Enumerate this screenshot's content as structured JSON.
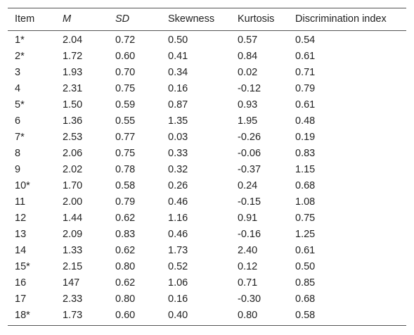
{
  "table": {
    "headers": [
      "Item",
      "M",
      "SD",
      "Skewness",
      "Kurtosis",
      "Discrimination index"
    ],
    "rows": [
      [
        "1*",
        "2.04",
        "0.72",
        "0.50",
        "0.57",
        "0.54"
      ],
      [
        "2*",
        "1.72",
        "0.60",
        "0.41",
        "0.84",
        "0.61"
      ],
      [
        "3",
        "1.93",
        "0.70",
        "0.34",
        "0.02",
        "0.71"
      ],
      [
        "4",
        "2.31",
        "0.75",
        "0.16",
        "-0.12",
        "0.79"
      ],
      [
        "5*",
        "1.50",
        "0.59",
        "0.87",
        "0.93",
        "0.61"
      ],
      [
        "6",
        "1.36",
        "0.55",
        "1.35",
        "1.95",
        "0.48"
      ],
      [
        "7*",
        "2.53",
        "0.77",
        "0.03",
        "-0.26",
        "0.19"
      ],
      [
        "8",
        "2.06",
        "0.75",
        "0.33",
        "-0.06",
        "0.83"
      ],
      [
        "9",
        "2.02",
        "0.78",
        "0.32",
        "-0.37",
        "1.15"
      ],
      [
        "10*",
        "1.70",
        "0.58",
        "0.26",
        "0.24",
        "0.68"
      ],
      [
        "11",
        "2.00",
        "0.79",
        "0.46",
        "-0.15",
        "1.08"
      ],
      [
        "12",
        "1.44",
        "0.62",
        "1.16",
        "0.91",
        "0.75"
      ],
      [
        "13",
        "2.09",
        "0.83",
        "0.46",
        "-0.16",
        "1.25"
      ],
      [
        "14",
        "1.33",
        "0.62",
        "1.73",
        "2.40",
        "0.61"
      ],
      [
        "15*",
        "2.15",
        "0.80",
        "0.52",
        "0.12",
        "0.50"
      ],
      [
        "16",
        "147",
        "0.62",
        "1.06",
        "0.71",
        "0.85"
      ],
      [
        "17",
        "2.33",
        "0.80",
        "0.16",
        "-0.30",
        "0.68"
      ],
      [
        "18*",
        "1.73",
        "0.60",
        "0.40",
        "0.80",
        "0.58"
      ]
    ]
  }
}
